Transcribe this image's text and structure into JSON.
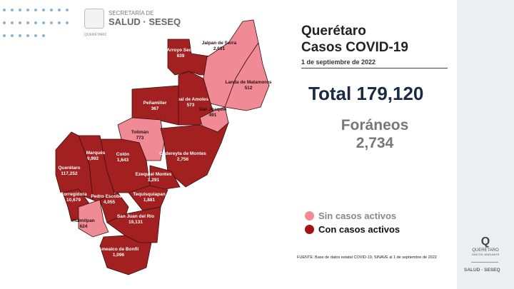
{
  "header": {
    "logo_line1": "SECRETARÍA DE",
    "logo_line2": "SALUD · SESEQ",
    "logo_line3": "QUERÉTARO"
  },
  "title": {
    "line1": "Querétaro",
    "line2": "Casos COVID-19",
    "date": "1 de septiembre de 2022"
  },
  "total": "Total 179,120",
  "foraneos": {
    "label": "Foráneos",
    "value": "2,734"
  },
  "legend": [
    {
      "label": "Sin casos activos",
      "color": "#f08b96"
    },
    {
      "label": "Con casos activos",
      "color": "#a32020"
    }
  ],
  "source": "FUENTE: Base de datos estatal COVID-19, SINAVE al 1 de septiembre de 2022",
  "side": {
    "brand": "QUERÉTARO",
    "tagline": "JUNTOS, ADELANTE",
    "salud": "SALUD · SESEQ"
  },
  "colors": {
    "active": "#a32020",
    "inactive": "#f08b96"
  },
  "municipalities": [
    {
      "name": "Arroyo Seco",
      "cases": "639",
      "active": true
    },
    {
      "name": "Jalpan de Serra",
      "cases": "2,631",
      "active": false
    },
    {
      "name": "Landa de Matamoros",
      "cases": "512",
      "active": false
    },
    {
      "name": "Pinal de Amoles",
      "cases": "573",
      "active": true
    },
    {
      "name": "Peñamiller",
      "cases": "367",
      "active": true
    },
    {
      "name": "San Joaquín",
      "cases": "491",
      "active": false
    },
    {
      "name": "Tolimán",
      "cases": "773",
      "active": false
    },
    {
      "name": "Cadereyta de Montes",
      "cases": "2,756",
      "active": true
    },
    {
      "name": "Colón",
      "cases": "1,643",
      "active": true
    },
    {
      "name": "El Marqués",
      "cases": "9,992",
      "active": true
    },
    {
      "name": "Querétaro",
      "cases": "117,252",
      "active": true
    },
    {
      "name": "Corregidora",
      "cases": "10,679",
      "active": true
    },
    {
      "name": "Huimilpan",
      "cases": "624",
      "active": false
    },
    {
      "name": "Pedro Escobedo",
      "cases": "4,055",
      "active": true
    },
    {
      "name": "Ezequiel Montes",
      "cases": "1,291",
      "active": true
    },
    {
      "name": "Tequisquiapan",
      "cases": "1,881",
      "active": true
    },
    {
      "name": "San Juan del Río",
      "cases": "19,131",
      "active": true
    },
    {
      "name": "Amealco de Bonfil",
      "cases": "1,096",
      "active": true
    }
  ]
}
